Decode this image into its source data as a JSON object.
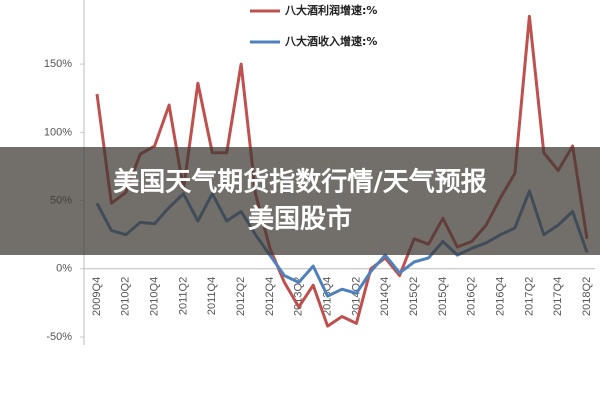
{
  "chart_data": {
    "type": "line",
    "categories": [
      "2009Q4",
      null,
      "2010Q2",
      null,
      "2010Q4",
      null,
      "2011Q2",
      null,
      "2011Q4",
      null,
      "2012Q2",
      null,
      "2012Q4",
      null,
      "2013Q2",
      null,
      "2013Q4",
      null,
      "2014Q2",
      null,
      "2014Q4",
      null,
      "2015Q2",
      null,
      "2015Q4",
      null,
      "2016Q2",
      null,
      "2016Q4",
      null,
      "2017Q2",
      null,
      "2017Q4",
      null,
      "2018Q2"
    ],
    "series": [
      {
        "name": "八大酒利润增速:%",
        "color": "#c0504d",
        "values": [
          128,
          48,
          56,
          84,
          90,
          120,
          58,
          136,
          85,
          85,
          150,
          55,
          15,
          -10,
          -28,
          -12,
          -42,
          -35,
          -40,
          0,
          8,
          -5,
          22,
          18,
          37,
          16,
          20,
          32,
          52,
          70,
          185,
          85,
          72,
          90,
          22
        ]
      },
      {
        "name": "八大酒收入增速:%",
        "color": "#4f81bd",
        "values": [
          48,
          28,
          25,
          34,
          33,
          45,
          55,
          35,
          55,
          35,
          42,
          25,
          10,
          -5,
          -10,
          2,
          -20,
          -15,
          -18,
          -2,
          10,
          -3,
          5,
          8,
          20,
          10,
          15,
          19,
          25,
          30,
          57,
          25,
          32,
          42,
          12
        ]
      }
    ],
    "ylim": [
      -50,
      197
    ],
    "yticks": [
      {
        "value": -50,
        "label": "-50%"
      },
      {
        "value": 0,
        "label": "0%"
      },
      {
        "value": 50,
        "label": "50%"
      },
      {
        "value": 100,
        "label": "100%"
      },
      {
        "value": 150,
        "label": "150%"
      }
    ],
    "grid": false
  },
  "banner": {
    "lines": [
      "美国天气期货指数行情/天气预报",
      "美国股市"
    ]
  }
}
